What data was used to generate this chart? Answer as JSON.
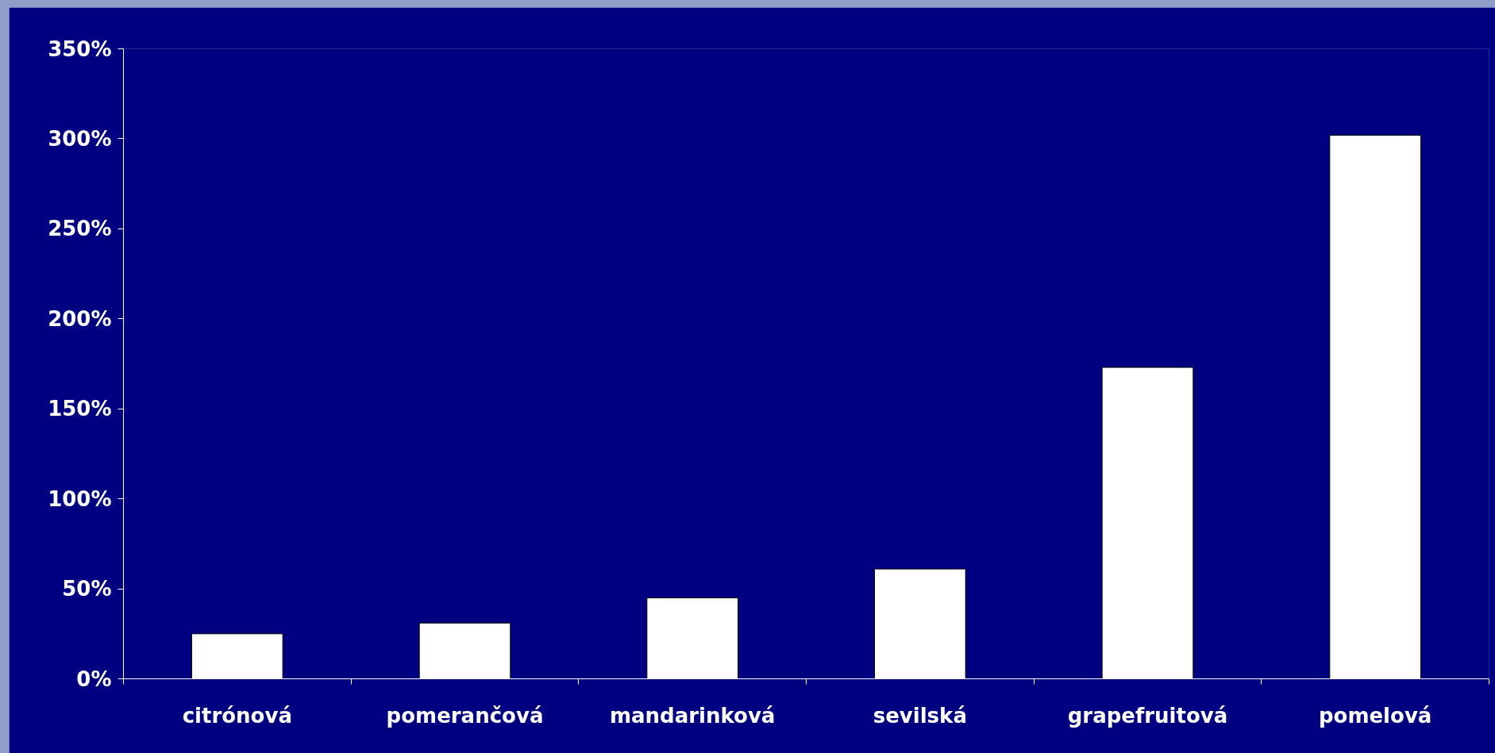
{
  "chart_data": {
    "type": "bar",
    "categories": [
      "citrónová",
      "pomerančová",
      "mandarinková",
      "sevilská",
      "grapefruitová",
      "pomelová"
    ],
    "values": [
      25,
      31,
      45,
      61,
      173,
      302
    ],
    "color": "#ffffff",
    "ylim": [
      0,
      350
    ],
    "yticks": [
      {
        "value": 0,
        "label": "0%"
      },
      {
        "value": 50,
        "label": "50%"
      },
      {
        "value": 100,
        "label": "100%"
      },
      {
        "value": 150,
        "label": "150%"
      },
      {
        "value": 200,
        "label": "200%"
      },
      {
        "value": 250,
        "label": "250%"
      },
      {
        "value": 300,
        "label": "300%"
      },
      {
        "value": 350,
        "label": "350%"
      }
    ]
  }
}
